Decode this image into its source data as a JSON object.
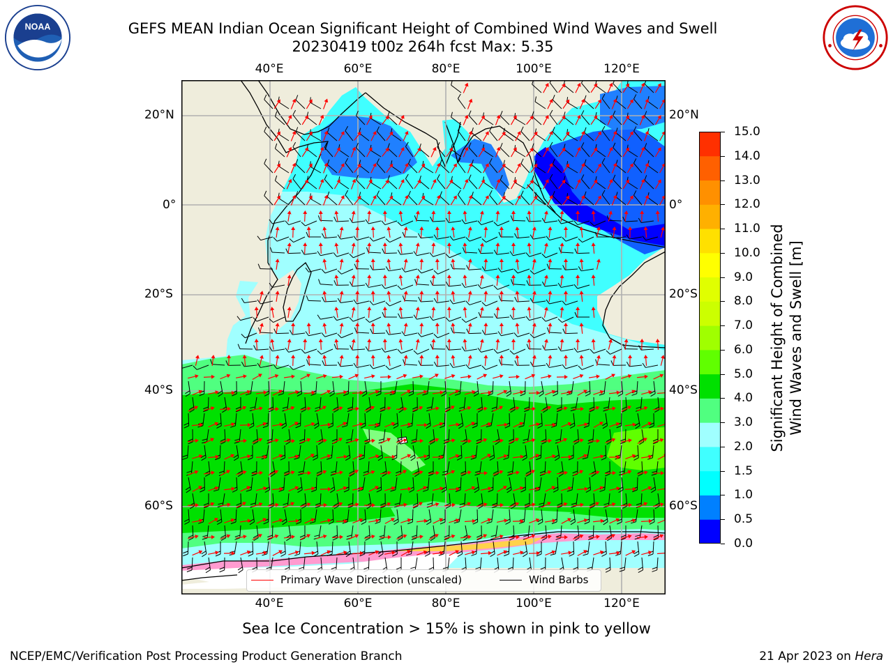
{
  "header": {
    "title_line1": "GEFS MEAN Indian Ocean Significant Height of Combined Wind Waves and Swell",
    "title_line2": "20230419 t00z 264h fcst   Max: 5.35"
  },
  "logos": {
    "noaa": {
      "icon": "noaa-logo",
      "text": "NOAA"
    },
    "nws": {
      "icon": "nws-logo"
    }
  },
  "map": {
    "lon_ticks": [
      "40°E",
      "60°E",
      "80°E",
      "100°E",
      "120°E"
    ],
    "lat_ticks": [
      "20°N",
      "0°",
      "20°S",
      "40°S",
      "60°S"
    ],
    "lon_values": [
      40,
      60,
      80,
      100,
      120
    ],
    "lat_values": [
      20,
      0,
      -20,
      -40,
      -60
    ],
    "lon_range": [
      20,
      130
    ],
    "lat_range": [
      -73,
      28
    ],
    "grid": true,
    "land_color": "#efeddc",
    "arrow_color": "#ff0000",
    "barb_color": "#000000"
  },
  "colorbar": {
    "title_line1": "Significant Height of Combined",
    "title_line2": "Wind Waves and Swell [m]",
    "ticks": [
      "15.0",
      "14.0",
      "13.0",
      "12.0",
      "11.0",
      "10.0",
      "9.0",
      "8.0",
      "7.0",
      "6.0",
      "5.0",
      "4.0",
      "3.0",
      "2.0",
      "1.5",
      "1.0",
      "0.5",
      "0.0"
    ],
    "colors": [
      "#0000ff",
      "#0080ff",
      "#00ffff",
      "#40ffff",
      "#a0ffff",
      "#50ff80",
      "#00e000",
      "#60ff00",
      "#a0ff00",
      "#ccff00",
      "#e0ff00",
      "#ffff00",
      "#ffe000",
      "#ffb000",
      "#ff9000",
      "#ff6000",
      "#ff3000",
      "#ff0000"
    ]
  },
  "legend": {
    "wave_direction": "Primary Wave Direction (unscaled)",
    "wind_barbs": "Wind Barbs"
  },
  "footer": {
    "note": "Sea Ice Concentration > 15% is shown in pink to yellow",
    "credit_left": "NCEP/EMC/Verification Post Processing Product Generation Branch",
    "credit_right_prefix": "21 Apr 2023 on ",
    "credit_right_host": "Hera"
  }
}
